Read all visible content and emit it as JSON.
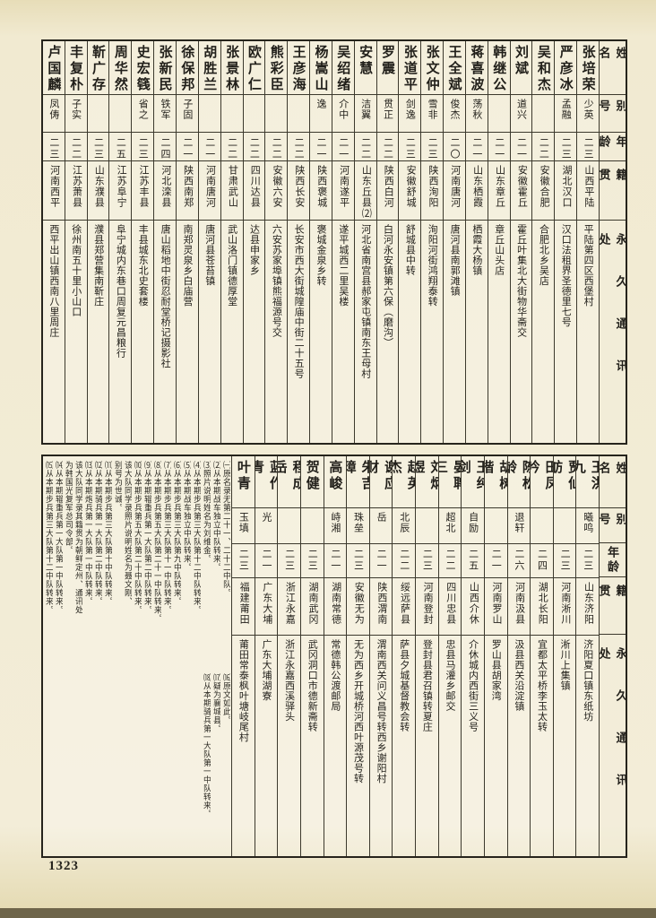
{
  "page": {
    "number": "1323"
  },
  "headers": {
    "name": "姓名",
    "hao": "别号",
    "age": "年龄",
    "native": "籍贯",
    "address": "永久通讯处"
  },
  "top_table": {
    "people": [
      {
        "name": "张培荣",
        "hao": "少英",
        "age": "二三",
        "native": "山西平陆",
        "address": "平陆第四区西堡村"
      },
      {
        "name": "严彦冰",
        "hao": "孟融",
        "age": "二三",
        "native": "湖北汉口",
        "address": "汉口法租界圣德里七号"
      },
      {
        "name": "吴和杰",
        "hao": "",
        "age": "二二",
        "native": "安徽合肥",
        "address": "合肥北乡吴店"
      },
      {
        "name": "刘斌",
        "hao": "道兴",
        "age": "二一",
        "native": "安徽霍丘",
        "address": "霍丘叶集北大街物华斋交"
      },
      {
        "name": "韩继公",
        "hao": "",
        "age": "二一",
        "native": "山东章丘",
        "address": "章丘山头店"
      },
      {
        "name": "蒋喜波",
        "hao": "荡秋",
        "age": "二一",
        "native": "山东栖霞",
        "address": "栖霞大杨镇"
      },
      {
        "name": "王全斌",
        "hao": "俊杰",
        "age": "二〇",
        "native": "河南唐河",
        "address": "唐河县南郭滩镇"
      },
      {
        "name": "张文仲",
        "hao": "雪非",
        "age": "二三",
        "native": "陕西洵阳",
        "address": "洵阳河街鸿翔泰转"
      },
      {
        "name": "张道平",
        "hao": "剑逸",
        "age": "二三",
        "native": "安徽舒城",
        "address": "舒城县中转"
      },
      {
        "name": "罗震",
        "hao": "贯正",
        "age": "二二",
        "native": "陕西白河",
        "address": "白河永安镇第六保（磨沟）"
      },
      {
        "name": "安慧",
        "hao": "洁翼",
        "age": "二二",
        "native": "山东丘县⑵",
        "address": "河北省南宫县郝家屯镇南东王母村"
      },
      {
        "name": "吴绍绪",
        "hao": "介中",
        "age": "二一",
        "native": "河南遂平",
        "address": "遂平城西二里吴楼"
      },
      {
        "name": "杨嵩山",
        "hao": "逸",
        "age": "二一",
        "native": "陕西褒城",
        "address": "褒城金泉乡转"
      },
      {
        "name": "王彦海",
        "hao": "",
        "age": "二二",
        "native": "陕西长安",
        "address": "长安市西大街城隍庙中街二十五号"
      },
      {
        "name": "熊彩臣",
        "hao": "",
        "age": "二二",
        "native": "安徽六安",
        "address": "六安苏家埠镇熊福源号交"
      },
      {
        "name": "欧广仁",
        "hao": "",
        "age": "二二",
        "native": "四川达县",
        "address": "达县申家乡"
      },
      {
        "name": "张景林",
        "hao": "",
        "age": "二二",
        "native": "甘肃武山",
        "address": "武山洛门镇德厚堂"
      },
      {
        "name": "胡胜兰",
        "hao": "",
        "age": "二一",
        "native": "河南唐河",
        "address": "唐河县苍苔镇"
      },
      {
        "name": "徐保邦",
        "hao": "子固",
        "age": "二一",
        "native": "陕西南郑",
        "address": "南郑灵泉乡白庙营"
      },
      {
        "name": "张新民",
        "hao": "铁军",
        "age": "二四",
        "native": "河北滦县",
        "address": "唐山稻地中街忍耐堂桥记摄影社"
      },
      {
        "name": "史宏篯",
        "hao": "省之",
        "age": "二三",
        "native": "江苏丰县",
        "address": "丰县城东北史套楼"
      },
      {
        "name": "周华然",
        "hao": "",
        "age": "二五",
        "native": "江苏阜宁",
        "address": "阜宁城内东巷口周复元昌粮行"
      },
      {
        "name": "靳广存",
        "hao": "",
        "age": "二三",
        "native": "山东濮县",
        "address": "濮县郑营集南靳庄"
      },
      {
        "name": "丰复朴",
        "hao": "子实",
        "age": "二二",
        "native": "江苏萧县",
        "address": "徐州南五十里小山口"
      },
      {
        "name": "卢国麟",
        "hao": "凤俦",
        "age": "二三",
        "native": "河南西平",
        "address": "西平出山镇西南八里周庄"
      }
    ]
  },
  "bottom_table": {
    "people": [
      {
        "name": "王洪九",
        "hao": "曦鸣",
        "age": "二三",
        "native": "山东济阳",
        "address": "济阳夏口镇东纸坊"
      },
      {
        "name": "贾仙舫",
        "hao": "",
        "age": "二三",
        "native": "河南淅川",
        "address": "淅川上集镇"
      },
      {
        "name": "田凤吟",
        "hao": "",
        "age": "二四",
        "native": "湖北长阳",
        "address": "宜都太平桥李玉太转"
      },
      {
        "name": "陈松龄",
        "hao": "退轩",
        "age": "二六",
        "native": "河南汲县",
        "address": "汲县西关沿淀镇"
      },
      {
        "name": "胡树楷",
        "hao": "",
        "age": "二一",
        "native": "河南罗山",
        "address": "罗山县胡家湾"
      },
      {
        "name": "王纯剑",
        "hao": "自励",
        "age": "二五",
        "native": "山西介休",
        "address": "介休城内西街三义号"
      },
      {
        "name": "晏聘三",
        "hao": "超北",
        "age": "二二",
        "native": "四川忠县",
        "address": "忠县马灌乡邮交"
      },
      {
        "name": "刘炳煜",
        "hao": "",
        "age": "二三",
        "native": "河南登封",
        "address": "登封县君召镇转夏庄"
      },
      {
        "name": "赵英杰",
        "hao": "北辰",
        "age": "二二",
        "native": "绥远萨县",
        "address": "萨县夕城基督教会转"
      },
      {
        "name": "谢应财",
        "hao": "岳",
        "age": "二一",
        "native": "陕西渭南",
        "address": "渭南西关问义昌号转西乡谢阳村"
      },
      {
        "name": "朱吉璋",
        "hao": "珠垒",
        "age": "二三",
        "native": "安徽无为",
        "address": "无为西乡开城桥河西叶源茂号转"
      },
      {
        "name": "高峻",
        "hao": "峙湘",
        "age": "二一",
        "native": "湖南常德",
        "address": "常德韩公渡邮局"
      },
      {
        "name": "贺健",
        "hao": "",
        "age": "二三",
        "native": "湖南武冈",
        "address": "武冈洞口市德新斋转"
      },
      {
        "name": "程成岳",
        "hao": "",
        "age": "二三",
        "native": "浙江永嘉",
        "address": "浙江永嘉西溪驿头"
      },
      {
        "name": "蓝作青",
        "hao": "光",
        "age": "二一",
        "native": "广东大埔",
        "address": "广东大埔湖寮"
      },
      {
        "name": "叶青",
        "hao": "玉填",
        "age": "二三",
        "native": "福建莆田",
        "address": "莆田常泰枫叶塘岐尾村"
      }
    ],
    "notes_columns": [
      "㈠原名录无第二十一、二十二中队。",
      "⑵从本期战车独立中队转来。",
      "⑶照片说明姓名为刘维金。",
      "⑷从本期步兵第三大队第十二中队转来。",
      "⑸从本期战车独立中队转来。",
      "⑹从本期步兵第三大队第九中队转来。",
      "⑺从本期步兵第三大队第十一中队转来。",
      "⑻从本期步兵第五大队第二十一中队转来。",
      "⑼从本期辎重兵第一大队第二中队转来。",
      "⑽从本期步兵第五大队第二十中队转来。",
      "该大队同学录照片说明姓名为聂文刚、",
      "别号为世诚。",
      "⑾从本期步兵第三大队第十中队转来。",
      "⑿从本期骑兵第一大队第二中队转来。",
      "⒀从本期炮兵第一大队第一中队转来。",
      "该大队同学录其籍贯为朝鲜定州、通讯处",
      "为韩国光复军总司令部。",
      "⒁从本期辎重兵第一大队第一中队转来。",
      "⒂从本期步兵第三大队第十二中队转来。"
    ],
    "extra_notes": [
      "⒃原文如此。",
      "⒄疑为襄城县。",
      "⒅从本期骑兵第一大队第一中队转来。"
    ]
  }
}
